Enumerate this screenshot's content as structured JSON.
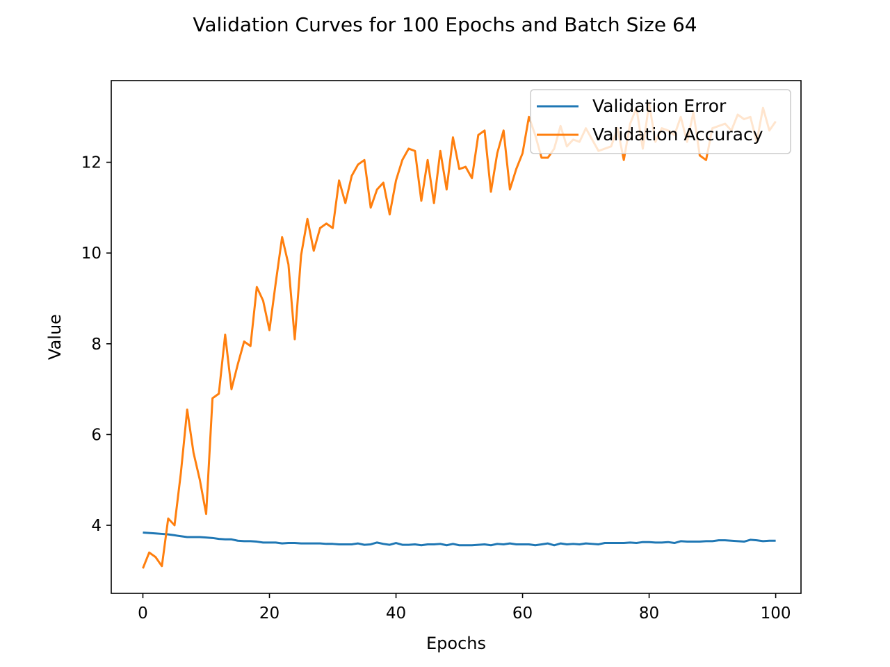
{
  "chart_data": {
    "type": "line",
    "title": "Validation Curves for 100 Epochs and Batch Size 64",
    "xlabel": "Epochs",
    "ylabel": "Value",
    "xlim": [
      -5,
      104
    ],
    "ylim": [
      2.5,
      13.8
    ],
    "xticks": [
      0,
      20,
      40,
      60,
      80,
      100
    ],
    "yticks": [
      4,
      6,
      8,
      10,
      12
    ],
    "grid": false,
    "legend_position": "top-right",
    "series": [
      {
        "name": "Validation Error",
        "color": "#1f77b4",
        "values": [
          3.84,
          3.83,
          3.82,
          3.81,
          3.8,
          3.78,
          3.76,
          3.74,
          3.74,
          3.74,
          3.73,
          3.72,
          3.7,
          3.69,
          3.69,
          3.66,
          3.65,
          3.65,
          3.64,
          3.62,
          3.62,
          3.62,
          3.6,
          3.61,
          3.61,
          3.6,
          3.6,
          3.6,
          3.6,
          3.59,
          3.59,
          3.58,
          3.58,
          3.58,
          3.6,
          3.57,
          3.58,
          3.62,
          3.59,
          3.57,
          3.61,
          3.57,
          3.57,
          3.58,
          3.56,
          3.58,
          3.58,
          3.59,
          3.56,
          3.59,
          3.56,
          3.56,
          3.56,
          3.57,
          3.58,
          3.56,
          3.59,
          3.58,
          3.6,
          3.58,
          3.58,
          3.58,
          3.56,
          3.58,
          3.6,
          3.56,
          3.6,
          3.58,
          3.59,
          3.58,
          3.6,
          3.59,
          3.58,
          3.61,
          3.61,
          3.61,
          3.61,
          3.62,
          3.61,
          3.63,
          3.63,
          3.62,
          3.62,
          3.63,
          3.61,
          3.65,
          3.64,
          3.64,
          3.64,
          3.65,
          3.65,
          3.67,
          3.67,
          3.66,
          3.65,
          3.64,
          3.68,
          3.67,
          3.65,
          3.66,
          3.66
        ]
      },
      {
        "name": "Validation Accuracy",
        "color": "#ff7f0e",
        "values": [
          3.05,
          3.4,
          3.3,
          3.1,
          4.15,
          4.0,
          5.15,
          6.55,
          5.6,
          5.0,
          4.25,
          6.8,
          6.9,
          8.2,
          7.0,
          7.55,
          8.05,
          7.95,
          9.25,
          8.95,
          8.3,
          9.35,
          10.35,
          9.75,
          8.1,
          9.95,
          10.75,
          10.05,
          10.55,
          10.65,
          10.55,
          11.6,
          11.1,
          11.7,
          11.95,
          12.05,
          11.0,
          11.4,
          11.55,
          10.85,
          11.6,
          12.05,
          12.3,
          12.25,
          11.15,
          12.05,
          11.1,
          12.25,
          11.4,
          12.55,
          11.85,
          11.9,
          11.65,
          12.6,
          12.7,
          11.35,
          12.2,
          12.7,
          11.4,
          11.85,
          12.2,
          13.0,
          12.6,
          12.1,
          12.1,
          12.3,
          12.8,
          12.35,
          12.5,
          12.45,
          12.75,
          12.5,
          12.25,
          12.3,
          12.35,
          12.75,
          12.05,
          12.85,
          13.2,
          12.3,
          13.3,
          12.45,
          12.75,
          12.7,
          12.6,
          13.0,
          12.45,
          13.1,
          12.15,
          12.05,
          12.75,
          12.8,
          12.85,
          12.7,
          13.05,
          12.95,
          13.0,
          12.45,
          13.2,
          12.7,
          12.9
        ]
      }
    ]
  }
}
